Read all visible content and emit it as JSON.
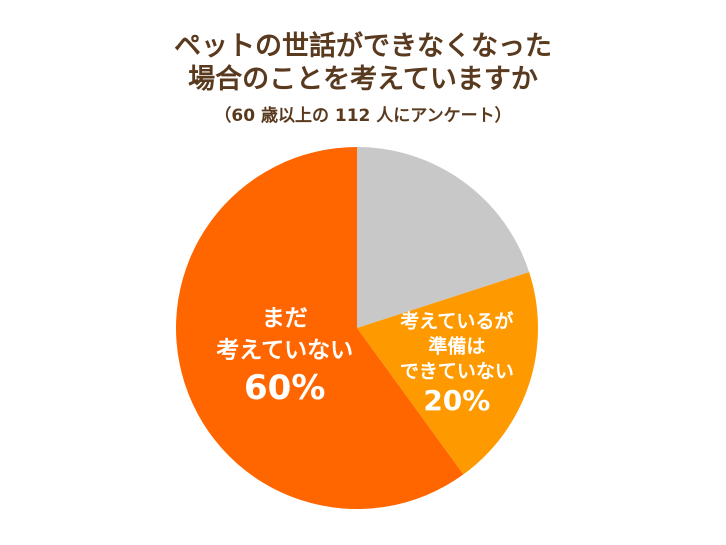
{
  "chart_data": {
    "type": "pie",
    "title": "ペットの世話ができなくなった\n場合のことを考えていますか",
    "subtitle": "（60 歳以上の 112 人にアンケート）",
    "categories": [
      null,
      "考えているが\n準備は\nできていない",
      "まだ\n考えていない"
    ],
    "values": [
      20,
      20,
      60
    ],
    "value_labels": [
      null,
      "20%",
      "60%"
    ],
    "colors": [
      "#c8c8c8",
      "#ff9900",
      "#ff6600"
    ]
  }
}
